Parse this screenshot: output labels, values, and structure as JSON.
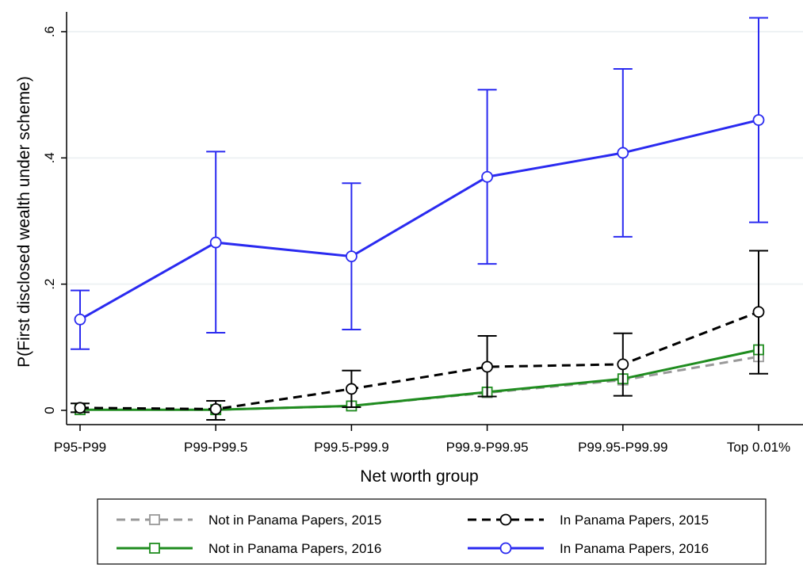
{
  "chart_data": {
    "type": "line",
    "xlabel": "Net worth group",
    "ylabel": "P(First disclosed wealth under scheme)",
    "categories": [
      "P95-P99",
      "P99-P99.5",
      "P99.5-P99.9",
      "P99.9-P99.95",
      "P99.95-P99.99",
      "Top 0.01%"
    ],
    "ylim": [
      -0.03,
      0.64
    ],
    "yticks": [
      {
        "value": 0,
        "label": "0"
      },
      {
        "value": 0.2,
        "label": ".2"
      },
      {
        "value": 0.4,
        "label": ".4"
      },
      {
        "value": 0.6,
        "label": ".6"
      }
    ],
    "grid": true,
    "legend_position": "bottom",
    "series": [
      {
        "name": "Not in Panama Papers, 2015",
        "color": "#999999",
        "dash": "dashed",
        "marker": "square",
        "values": [
          0.002,
          0.001,
          0.007,
          0.028,
          0.048,
          0.085
        ],
        "error_low": null,
        "error_high": null
      },
      {
        "name": "In Panama Papers, 2015",
        "color": "#000000",
        "dash": "dashed",
        "marker": "circle",
        "values": [
          0.004,
          0.002,
          0.034,
          0.069,
          0.073,
          0.156
        ],
        "error_low": [
          -0.003,
          -0.015,
          0.005,
          0.022,
          0.023,
          0.058
        ],
        "error_high": [
          0.011,
          0.015,
          0.063,
          0.118,
          0.122,
          0.253
        ]
      },
      {
        "name": "Not in Panama Papers, 2016",
        "color": "#1f8c1f",
        "dash": "solid",
        "marker": "square",
        "values": [
          0.001,
          0.001,
          0.007,
          0.029,
          0.05,
          0.096
        ],
        "error_low": null,
        "error_high": null
      },
      {
        "name": "In Panama Papers, 2016",
        "color": "#2a2af0",
        "dash": "solid",
        "marker": "circle",
        "values": [
          0.144,
          0.266,
          0.244,
          0.37,
          0.408,
          0.46
        ],
        "error_low": [
          0.097,
          0.123,
          0.128,
          0.232,
          0.275,
          0.298
        ],
        "error_high": [
          0.19,
          0.41,
          0.36,
          0.508,
          0.541,
          0.622
        ]
      }
    ],
    "legend_order": [
      0,
      1,
      2,
      3
    ]
  }
}
